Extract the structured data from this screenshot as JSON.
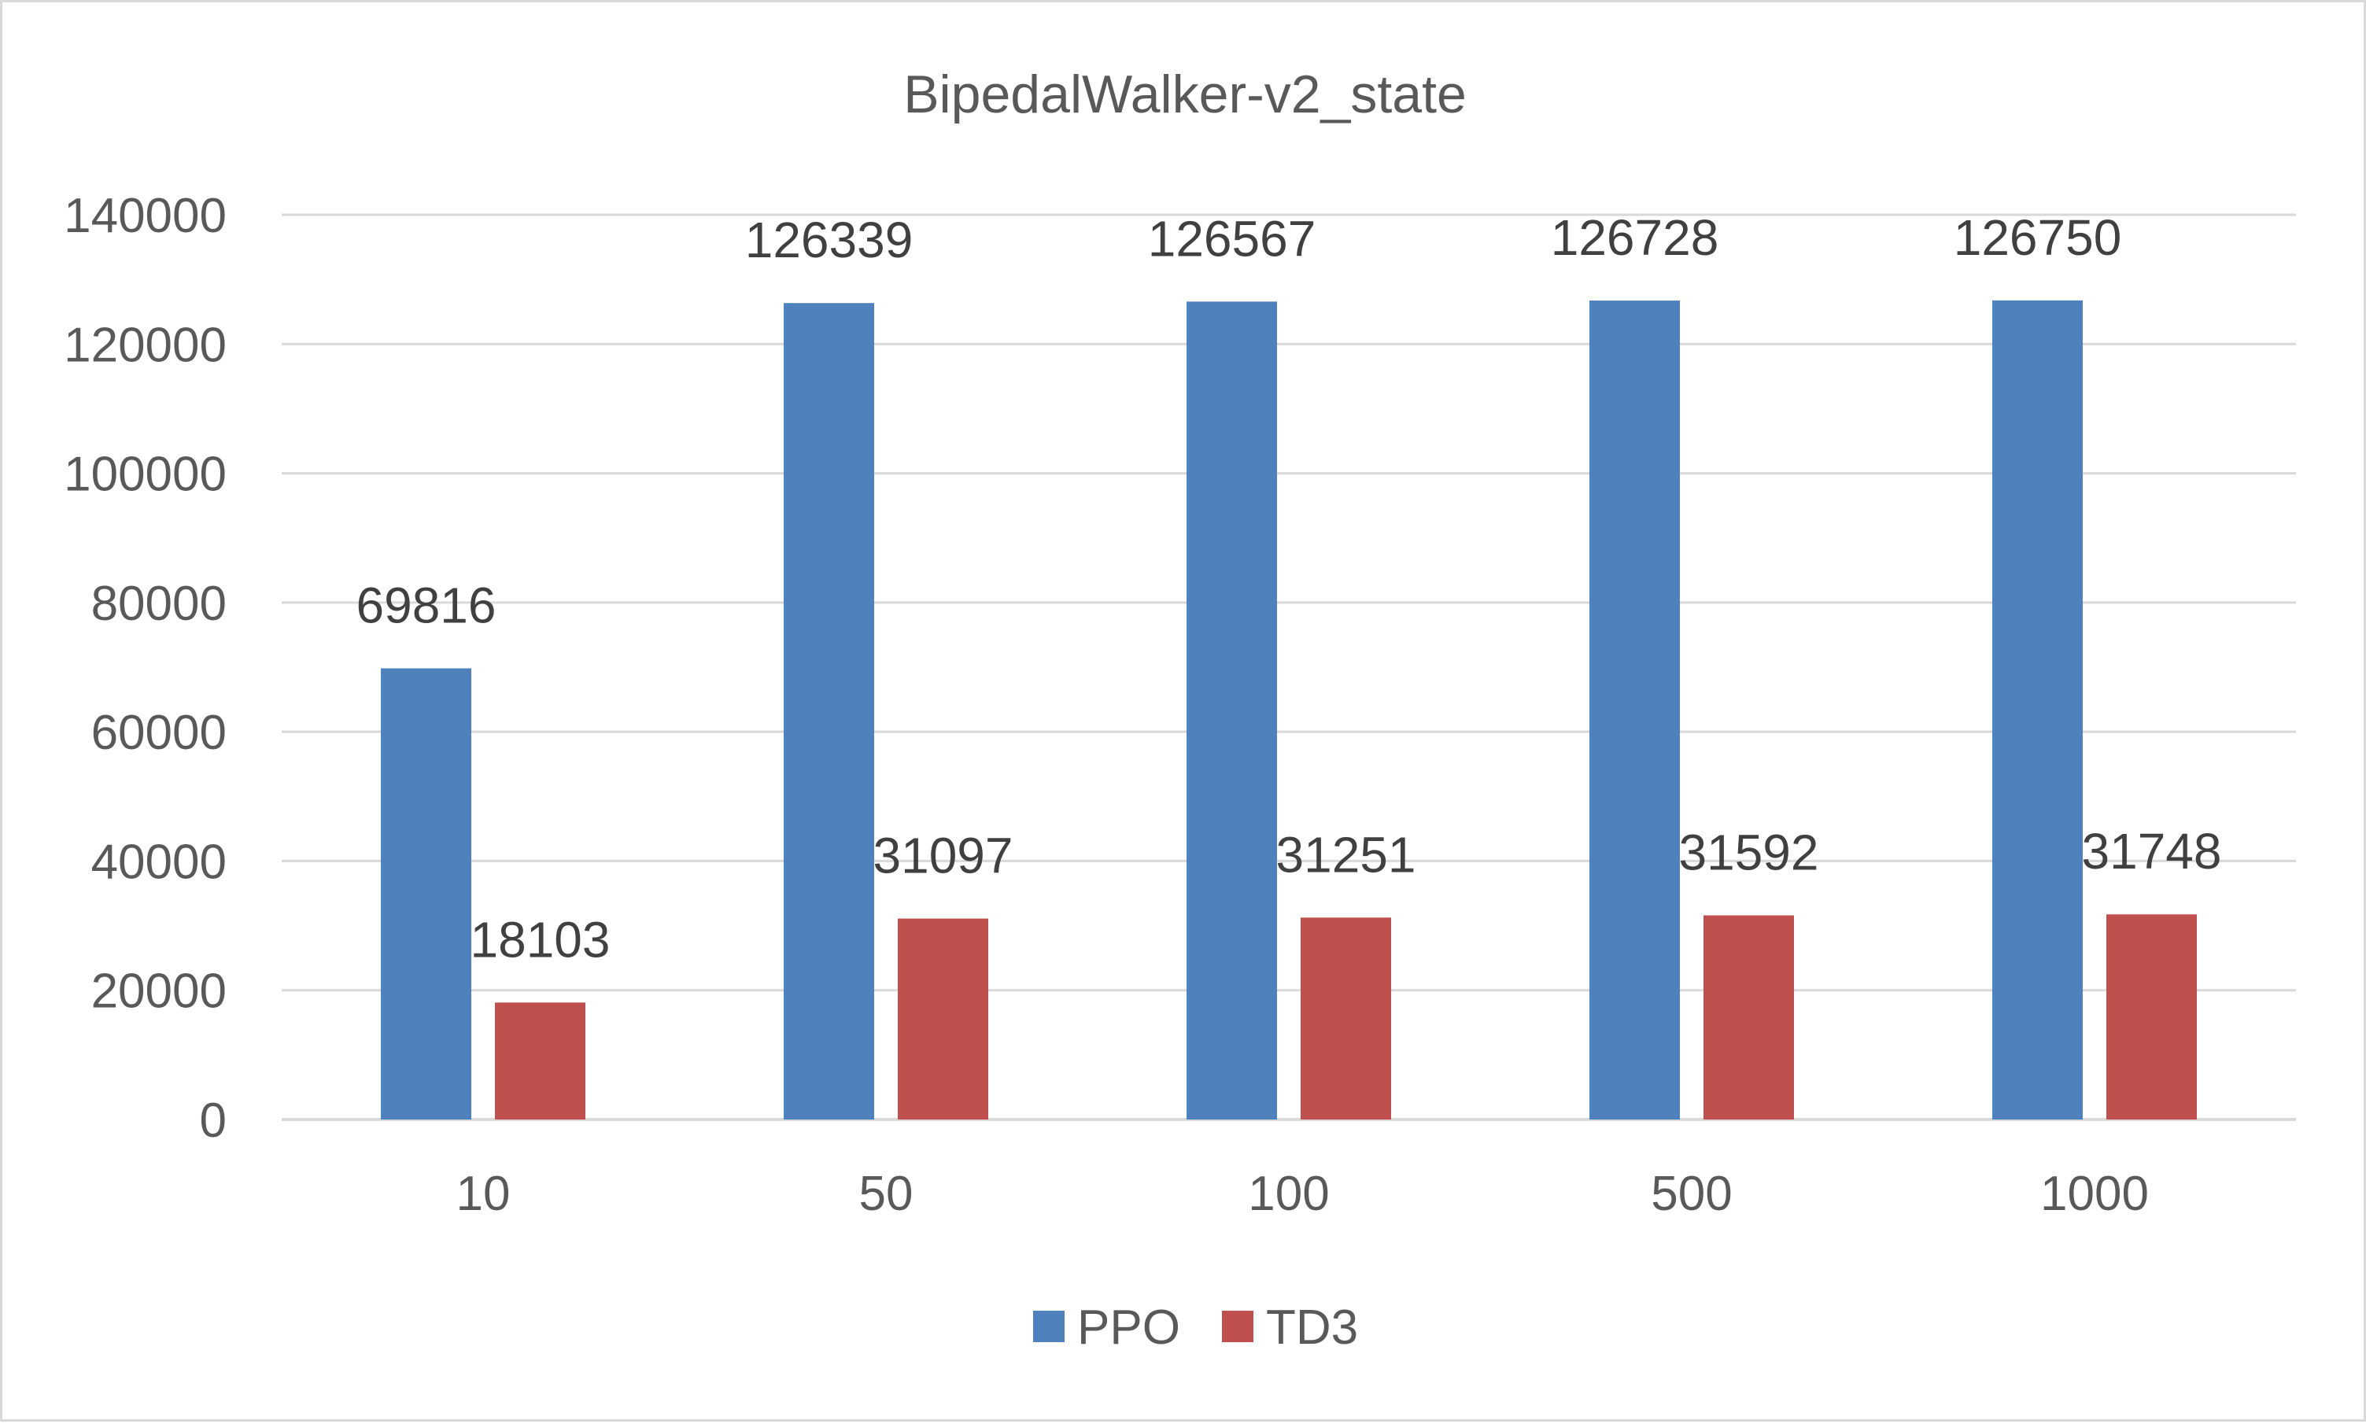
{
  "chart_data": {
    "type": "bar",
    "title": "BipedalWalker-v2_state",
    "xlabel": "",
    "ylabel": "",
    "categories": [
      "10",
      "50",
      "100",
      "500",
      "1000"
    ],
    "series": [
      {
        "name": "PPO",
        "values": [
          69816,
          126339,
          126567,
          126728,
          126750
        ],
        "color": "#4f81bd"
      },
      {
        "name": "TD3",
        "values": [
          18103,
          31097,
          31251,
          31592,
          31748
        ],
        "color": "#c0504d"
      }
    ],
    "ylim": [
      0,
      140000
    ],
    "yticks": [
      0,
      20000,
      40000,
      60000,
      80000,
      100000,
      120000,
      140000
    ],
    "grid": true,
    "legend_position": "bottom",
    "gridline_color": "#d9d9d9",
    "axis_line_color": "#d9d9d9"
  }
}
